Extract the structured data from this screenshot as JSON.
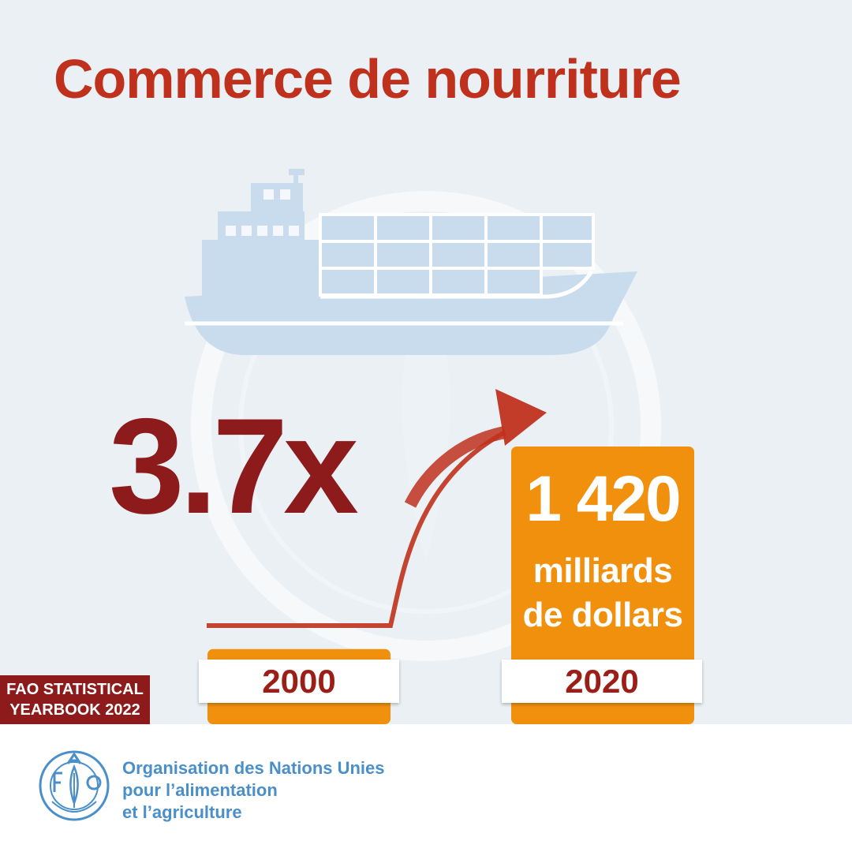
{
  "title": "Commerce de nourriture",
  "highlight": {
    "multiplier": "3.7x",
    "value_main": "1 420",
    "value_unit_line1": "milliards",
    "value_unit_line2": "de dollars"
  },
  "chart_data": {
    "type": "bar",
    "categories": [
      "2000",
      "2020"
    ],
    "values": [
      384,
      1420
    ],
    "ylim": [
      0,
      1420
    ],
    "grid": false,
    "legend": "none"
  },
  "badge": {
    "line1": "FAO STATISTICAL",
    "line2": "YEARBOOK 2022"
  },
  "organization": {
    "line1": "Organisation des Nations Unies",
    "line2": "pour l’alimentation",
    "line3": "et l’agriculture"
  },
  "colors": {
    "title_red": "#c0311d",
    "dark_red": "#8e1b1b",
    "bar_orange": "#f0900d",
    "background": "#eaf0f4",
    "ship_blue": "#c9dcee",
    "fao_blue": "#4a8fc9"
  },
  "icons": {
    "ship": "cargo-ship-icon",
    "arrow": "growth-arrow-icon",
    "logo": "fao-logo-icon"
  }
}
